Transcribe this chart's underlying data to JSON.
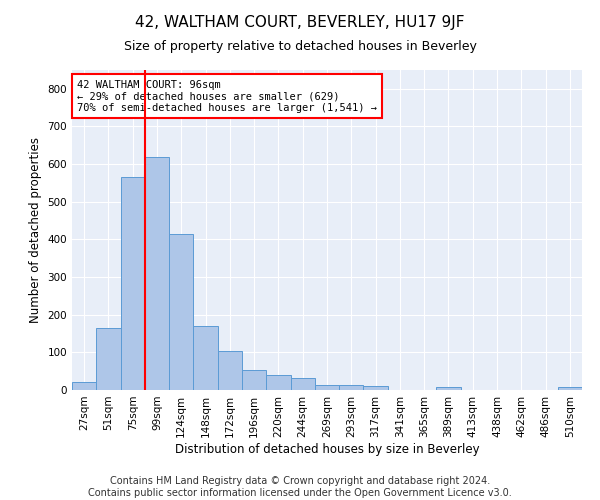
{
  "title": "42, WALTHAM COURT, BEVERLEY, HU17 9JF",
  "subtitle": "Size of property relative to detached houses in Beverley",
  "xlabel": "Distribution of detached houses by size in Beverley",
  "ylabel": "Number of detached properties",
  "footer_line1": "Contains HM Land Registry data © Crown copyright and database right 2024.",
  "footer_line2": "Contains public sector information licensed under the Open Government Licence v3.0.",
  "bar_labels": [
    "27sqm",
    "51sqm",
    "75sqm",
    "99sqm",
    "124sqm",
    "148sqm",
    "172sqm",
    "196sqm",
    "220sqm",
    "244sqm",
    "269sqm",
    "293sqm",
    "317sqm",
    "341sqm",
    "365sqm",
    "389sqm",
    "413sqm",
    "438sqm",
    "462sqm",
    "486sqm",
    "510sqm"
  ],
  "bar_values": [
    20,
    165,
    565,
    620,
    415,
    170,
    103,
    52,
    40,
    32,
    14,
    14,
    10,
    0,
    0,
    8,
    0,
    0,
    0,
    0,
    8
  ],
  "bar_color": "#aec6e8",
  "bar_edge_color": "#5b9bd5",
  "vline_x_index": 3,
  "vline_color": "red",
  "annotation_text": "42 WALTHAM COURT: 96sqm\n← 29% of detached houses are smaller (629)\n70% of semi-detached houses are larger (1,541) →",
  "annotation_box_color": "white",
  "annotation_box_edge": "red",
  "ylim": [
    0,
    850
  ],
  "yticks": [
    0,
    100,
    200,
    300,
    400,
    500,
    600,
    700,
    800
  ],
  "bg_color": "#e8eef8",
  "title_fontsize": 11,
  "subtitle_fontsize": 9,
  "axis_label_fontsize": 8.5,
  "tick_fontsize": 7.5,
  "footer_fontsize": 7
}
